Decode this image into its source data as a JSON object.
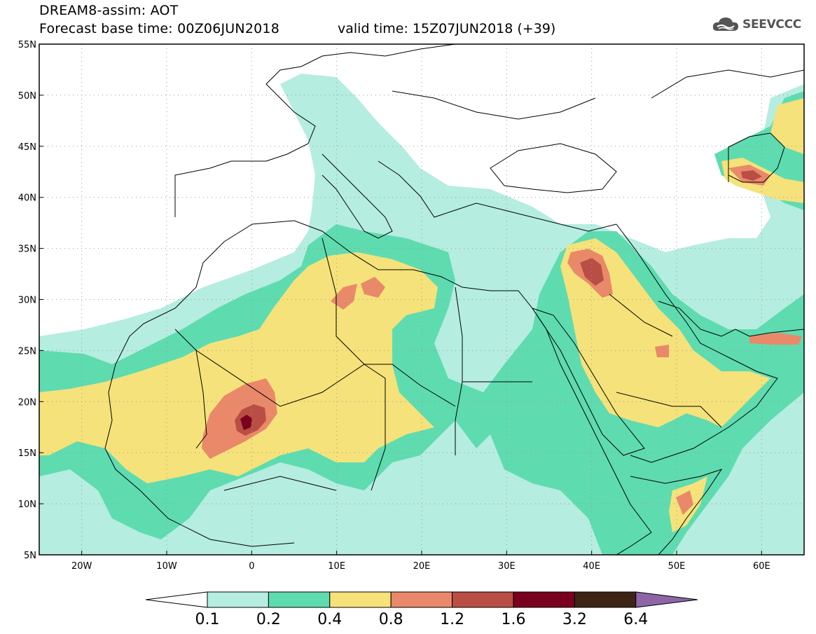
{
  "title": {
    "line1": "DREAM8-assim: AOT",
    "line2": "Forecast base time: 00Z06JUN2018",
    "valid": "valid time: 15Z07JUN2018 (+39)"
  },
  "logo": {
    "icon": "cloud-logo-icon",
    "text": "SEEVCCC"
  },
  "map": {
    "lon_range": [
      -25,
      65
    ],
    "lat_range": [
      5,
      55
    ],
    "lon_ticks": [
      {
        "value": -20,
        "label": "20W"
      },
      {
        "value": -10,
        "label": "10W"
      },
      {
        "value": 0,
        "label": "0"
      },
      {
        "value": 10,
        "label": "10E"
      },
      {
        "value": 20,
        "label": "20E"
      },
      {
        "value": 30,
        "label": "30E"
      },
      {
        "value": 40,
        "label": "40E"
      },
      {
        "value": 50,
        "label": "50E"
      },
      {
        "value": 60,
        "label": "60E"
      }
    ],
    "lat_ticks": [
      {
        "value": 55,
        "label": "55N"
      },
      {
        "value": 50,
        "label": "50N"
      },
      {
        "value": 45,
        "label": "45N"
      },
      {
        "value": 40,
        "label": "40N"
      },
      {
        "value": 35,
        "label": "35N"
      },
      {
        "value": 30,
        "label": "30N"
      },
      {
        "value": 25,
        "label": "25N"
      },
      {
        "value": 20,
        "label": "20N"
      },
      {
        "value": 15,
        "label": "15N"
      },
      {
        "value": 10,
        "label": "10N"
      },
      {
        "value": 5,
        "label": "5N"
      }
    ]
  },
  "colorbar": {
    "colors": [
      "#b5ede0",
      "#5fdbb0",
      "#f5e27a",
      "#e9896a",
      "#b94e44",
      "#7a0020",
      "#3e2414"
    ],
    "end_colors": {
      "low": "#ffffff",
      "high": "#8e66a8"
    },
    "labels": [
      "0.1",
      "0.2",
      "0.4",
      "0.8",
      "1.2",
      "1.6",
      "3.2",
      "6.4"
    ]
  },
  "colors": {
    "c1": "#b5ede0",
    "c2": "#5fdbb0",
    "c3": "#f5e27a",
    "c4": "#e9896a",
    "c5": "#b94e44",
    "c6": "#7a0020",
    "coast": "#000000"
  }
}
